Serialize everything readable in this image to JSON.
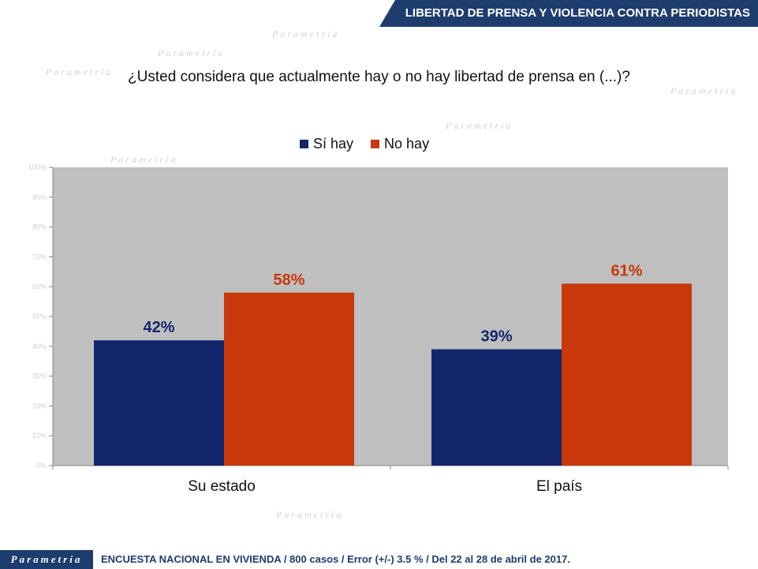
{
  "header": {
    "title": "LIBERTAD DE PRENSA Y VIOLENCIA CONTRA PERIODISTAS"
  },
  "watermark": "Parametría",
  "footer": {
    "logo": "Parametría",
    "text": "ENCUESTA NACIONAL EN VIVIENDA / 800 casos / Error (+/-) 3.5 % / Del 22 al 28 de abril de 2017."
  },
  "chart_data": {
    "type": "bar",
    "title": "¿Usted considera que actualmente hay o no hay libertad de prensa en (...)?",
    "categories": [
      "Su estado",
      "El país"
    ],
    "series": [
      {
        "name": "Sí hay",
        "values": [
          42,
          39
        ],
        "labels": [
          "42%",
          "39%"
        ],
        "color": "#13266b"
      },
      {
        "name": "No hay",
        "values": [
          58,
          61
        ],
        "labels": [
          "58%",
          "61%"
        ],
        "color": "#c8380a"
      }
    ],
    "ylim": [
      0,
      100
    ],
    "yticks": [
      "0%",
      "10%",
      "20%",
      "30%",
      "40%",
      "50%",
      "60%",
      "70%",
      "80%",
      "90%",
      "100%"
    ],
    "legend": "top-center",
    "plot_bg": "#bfbfbf"
  }
}
